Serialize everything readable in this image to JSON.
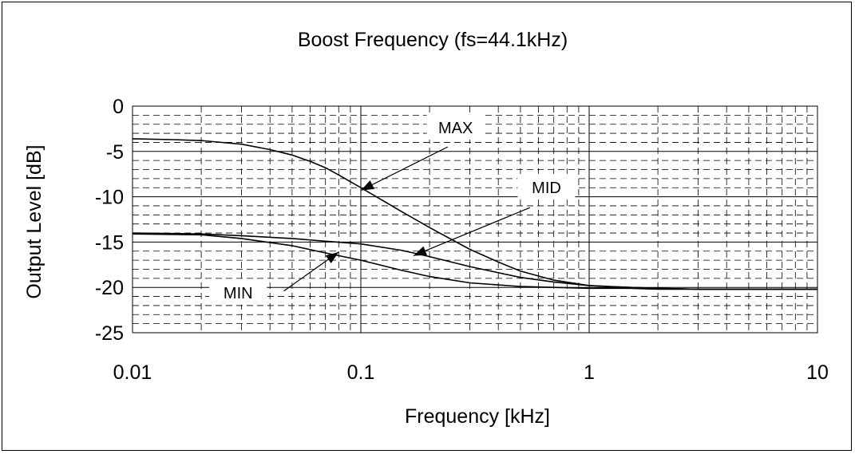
{
  "chart_data": {
    "type": "line",
    "title": "Boost Frequency (fs=44.1kHz)",
    "xlabel": "Frequency [kHz]",
    "ylabel": "Output Level [dB]",
    "x_scale": "log",
    "xlim": [
      0.01,
      10
    ],
    "ylim": [
      -25,
      0
    ],
    "x_ticks": [
      0.01,
      0.1,
      1,
      10
    ],
    "x_tick_labels": [
      "0.01",
      "0.1",
      "1",
      "10"
    ],
    "y_ticks": [
      0,
      -5,
      -10,
      -15,
      -20,
      -25
    ],
    "y_tick_labels": [
      "0",
      "-5",
      "-10",
      "-15",
      "-20",
      "-25"
    ],
    "grid": true,
    "legend": "none",
    "line_color": "#000000",
    "series": [
      {
        "name": "MAX",
        "x": [
          0.01,
          0.015,
          0.02,
          0.03,
          0.04,
          0.05,
          0.06,
          0.07,
          0.08,
          0.1,
          0.15,
          0.2,
          0.3,
          0.4,
          0.5,
          0.7,
          1,
          1.5,
          2,
          3,
          5,
          10
        ],
        "y": [
          -3.6,
          -3.7,
          -3.8,
          -4.2,
          -4.8,
          -5.4,
          -6.1,
          -6.8,
          -7.6,
          -9.0,
          -11.6,
          -13.4,
          -15.8,
          -17.2,
          -18.2,
          -19.2,
          -19.8,
          -20.0,
          -20.1,
          -20.2,
          -20.2,
          -20.2
        ]
      },
      {
        "name": "MID",
        "x": [
          0.01,
          0.02,
          0.03,
          0.05,
          0.07,
          0.1,
          0.15,
          0.2,
          0.3,
          0.5,
          0.7,
          1,
          1.5,
          2,
          3,
          5,
          10
        ],
        "y": [
          -14.0,
          -14.1,
          -14.3,
          -14.6,
          -14.9,
          -15.2,
          -15.9,
          -16.6,
          -17.7,
          -18.9,
          -19.4,
          -19.8,
          -20.0,
          -20.1,
          -20.2,
          -20.2,
          -20.2
        ]
      },
      {
        "name": "MIN",
        "x": [
          0.01,
          0.02,
          0.03,
          0.05,
          0.07,
          0.1,
          0.15,
          0.2,
          0.3,
          0.5,
          0.7,
          1,
          1.5,
          2,
          3,
          5,
          10
        ],
        "y": [
          -14.1,
          -14.2,
          -14.6,
          -15.4,
          -16.2,
          -17.0,
          -18.1,
          -18.8,
          -19.5,
          -19.9,
          -20.0,
          -20.1,
          -20.1,
          -20.2,
          -20.2,
          -20.2,
          -20.2
        ]
      }
    ],
    "annotations": [
      {
        "label": "MAX",
        "series": "MAX",
        "target_x": 0.1,
        "target_y": -9.3,
        "text_x": 0.26,
        "text_y": -3.0,
        "tail_x": 0.24,
        "tail_y": -4.5
      },
      {
        "label": "MID",
        "series": "MID",
        "target_x": 0.17,
        "target_y": -16.5,
        "text_x": 0.65,
        "text_y": -9.6,
        "tail_x": 0.55,
        "tail_y": -11.2
      },
      {
        "label": "MIN",
        "series": "MIN",
        "target_x": 0.08,
        "target_y": -16.1,
        "text_x": 0.029,
        "text_y": -21.2,
        "tail_x": 0.046,
        "tail_y": -20.4
      }
    ]
  }
}
